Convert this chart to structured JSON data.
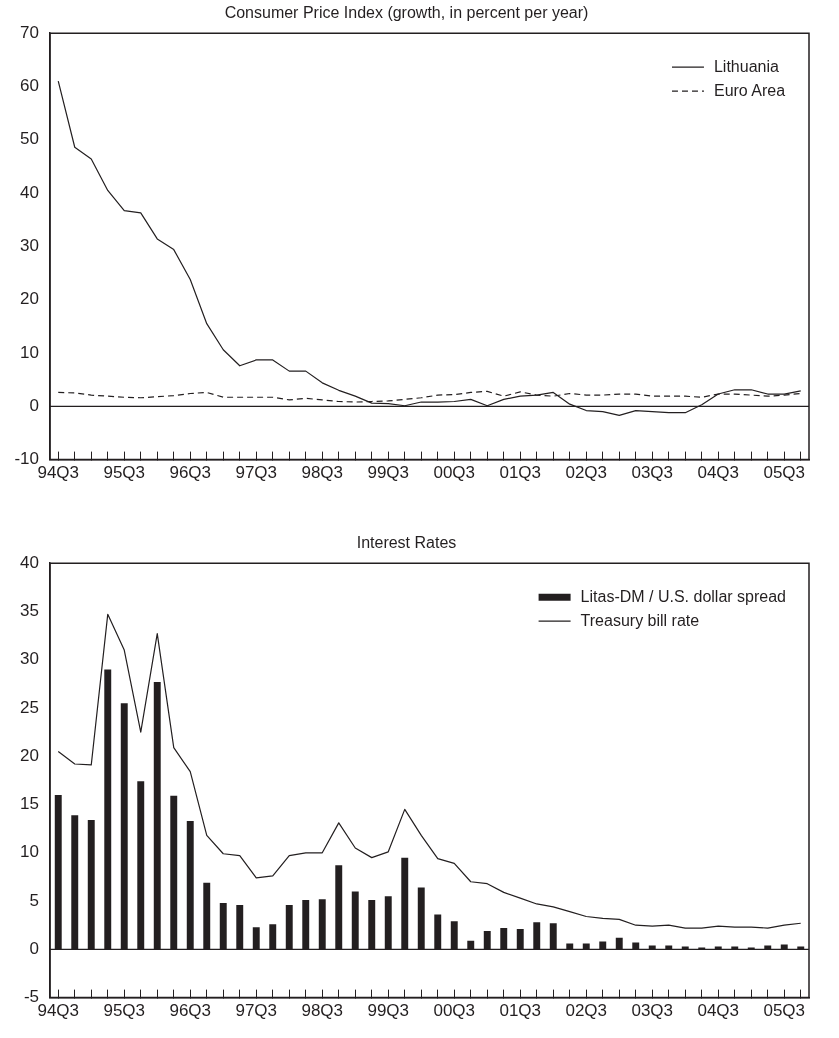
{
  "chart_data": [
    {
      "type": "line",
      "title": "Consumer Price Index (growth, in percent per year)",
      "categories": [
        "94Q3",
        null,
        null,
        null,
        "95Q3",
        null,
        null,
        null,
        "96Q3",
        null,
        null,
        null,
        "97Q3",
        null,
        null,
        null,
        "98Q3",
        null,
        null,
        null,
        "99Q3",
        null,
        null,
        null,
        "00Q3",
        null,
        null,
        null,
        "01Q3",
        null,
        null,
        null,
        "02Q3",
        null,
        null,
        null,
        "03Q3",
        null,
        null,
        null,
        "04Q3",
        null,
        null,
        null,
        "05Q3",
        null
      ],
      "series": [
        {
          "name": "Lithuania",
          "color": "#231f20",
          "line_style": "solid",
          "values": [
            61,
            48.6,
            46.4,
            40.5,
            36.7,
            36.3,
            31.4,
            29.4,
            23.8,
            15.5,
            10.6,
            7.6,
            8.7,
            8.7,
            6.6,
            6.6,
            4.4,
            3.0,
            1.9,
            0.6,
            0.5,
            0.1,
            0.8,
            0.8,
            0.9,
            1.3,
            0.1,
            1.3,
            1.9,
            2.1,
            2.6,
            0.4,
            -0.8,
            -1.0,
            -1.7,
            -0.8,
            -1.0,
            -1.2,
            -1.2,
            0.3,
            2.3,
            3.1,
            3.1,
            2.3,
            2.3,
            2.9
          ]
        },
        {
          "name": "Euro Area",
          "color": "#231f20",
          "line_style": "dashed",
          "values": [
            2.6,
            2.5,
            2.1,
            1.9,
            1.7,
            1.6,
            1.8,
            2.0,
            2.4,
            2.6,
            1.7,
            1.7,
            1.7,
            1.7,
            1.2,
            1.5,
            1.2,
            0.9,
            0.8,
            0.9,
            1.0,
            1.3,
            1.6,
            2.1,
            2.2,
            2.6,
            2.8,
            1.9,
            2.7,
            2.1,
            1.9,
            2.4,
            2.1,
            2.1,
            2.3,
            2.3,
            1.9,
            1.9,
            1.9,
            1.7,
            2.3,
            2.3,
            2.1,
            1.9,
            2.1,
            2.4
          ]
        }
      ],
      "ylim": [
        -10,
        70
      ],
      "yticks": [
        -10,
        0,
        10,
        20,
        30,
        40,
        50,
        60,
        70
      ],
      "ref_lines": [
        {
          "axis": "y",
          "value": 0
        }
      ],
      "legend": "top right",
      "marker": "none"
    },
    {
      "type": "bar",
      "title": "Interest Rates",
      "categories": [
        "94Q3",
        null,
        null,
        null,
        "95Q3",
        null,
        null,
        null,
        "96Q3",
        null,
        null,
        null,
        "97Q3",
        null,
        null,
        null,
        "98Q3",
        null,
        null,
        null,
        "99Q3",
        null,
        null,
        null,
        "00Q3",
        null,
        null,
        null,
        "01Q3",
        null,
        null,
        null,
        "02Q3",
        null,
        null,
        null,
        "03Q3",
        null,
        null,
        null,
        "04Q3",
        null,
        null,
        null,
        "05Q3",
        null
      ],
      "series": [
        {
          "name": "Litas-DM / U.S. dollar spread",
          "type": "bar",
          "color": "#231f20",
          "values": [
            16.0,
            13.9,
            13.4,
            29.0,
            25.5,
            17.4,
            27.7,
            15.9,
            13.3,
            6.9,
            4.8,
            4.6,
            2.3,
            2.6,
            4.6,
            5.1,
            5.2,
            8.7,
            6.0,
            5.1,
            5.5,
            9.5,
            6.4,
            3.6,
            2.9,
            0.9,
            1.9,
            2.2,
            2.1,
            2.8,
            2.7,
            0.6,
            0.6,
            0.8,
            1.2,
            0.7,
            0.4,
            0.4,
            0.3,
            0.2,
            0.3,
            0.3,
            0.2,
            0.4,
            0.5,
            0.3
          ]
        },
        {
          "name": "Treasury bill rate",
          "type": "line",
          "color": "#231f20",
          "line_style": "solid",
          "values": [
            20.5,
            19.2,
            19.1,
            34.7,
            31.0,
            22.5,
            32.7,
            20.9,
            18.4,
            11.8,
            9.9,
            9.7,
            7.4,
            7.6,
            9.7,
            10.0,
            10.0,
            13.1,
            10.5,
            9.5,
            10.1,
            14.5,
            11.8,
            9.4,
            8.9,
            7.0,
            6.8,
            5.9,
            5.3,
            4.7,
            4.4,
            3.9,
            3.4,
            3.2,
            3.1,
            2.5,
            2.4,
            2.5,
            2.2,
            2.2,
            2.4,
            2.3,
            2.3,
            2.2,
            2.5,
            2.7
          ]
        }
      ],
      "ylim": [
        -5,
        40
      ],
      "yticks": [
        -5,
        0,
        5,
        10,
        15,
        20,
        25,
        30,
        35,
        40
      ],
      "ref_lines": [
        {
          "axis": "y",
          "value": 0
        }
      ],
      "legend": "top right",
      "marker": "none"
    }
  ]
}
